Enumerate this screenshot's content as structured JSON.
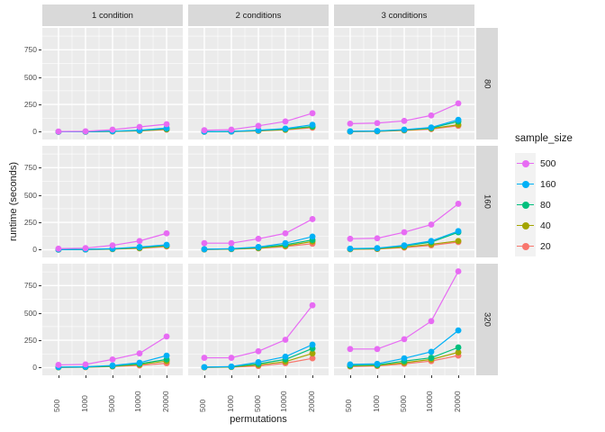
{
  "figure": {
    "x_axis_title": "permutations",
    "y_axis_title": "runtime (seconds)",
    "panel_bg": "#EBEBEB",
    "strip_bg": "#D9D9D9",
    "grid_color": "#FFFFFF"
  },
  "legend": {
    "title": "sample_size",
    "entries": [
      {
        "label": "500",
        "color": "#E76BF3"
      },
      {
        "label": "160",
        "color": "#00B0F6"
      },
      {
        "label": "80",
        "color": "#00BF7D"
      },
      {
        "label": "40",
        "color": "#A3A500"
      },
      {
        "label": "20",
        "color": "#F8766D"
      }
    ]
  },
  "chart_data": {
    "type": "line",
    "title": "",
    "xlabel": "permutations",
    "ylabel": "runtime (seconds)",
    "x_categories": [
      "500",
      "1000",
      "5000",
      "10000",
      "20000"
    ],
    "y_ticks": [
      0,
      250,
      500,
      750
    ],
    "ylim": [
      -70,
      950
    ],
    "facet_columns": [
      "1 condition",
      "2 conditions",
      "3 conditions"
    ],
    "facet_rows": [
      "80",
      "160",
      "320"
    ],
    "legend_title": "sample_size",
    "legend_order": [
      "500",
      "160",
      "80",
      "40",
      "20"
    ],
    "series_draw_order": [
      "20",
      "40",
      "80",
      "160",
      "500"
    ],
    "series_colors": {
      "500": "#E76BF3",
      "160": "#00B0F6",
      "80": "#00BF7D",
      "40": "#A3A500",
      "20": "#F8766D"
    },
    "facets": [
      {
        "row": "80",
        "col": "1 condition",
        "series": {
          "500": [
            3,
            5,
            20,
            45,
            70
          ],
          "160": [
            1,
            2,
            6,
            15,
            35
          ],
          "80": [
            1,
            2,
            5,
            12,
            28
          ],
          "40": [
            1,
            1,
            4,
            10,
            24
          ],
          "20": [
            1,
            1,
            3,
            8,
            20
          ]
        }
      },
      {
        "row": "80",
        "col": "2 conditions",
        "series": {
          "500": [
            15,
            20,
            55,
            95,
            170
          ],
          "160": [
            2,
            4,
            15,
            30,
            65
          ],
          "80": [
            2,
            3,
            12,
            25,
            50
          ],
          "40": [
            1,
            3,
            10,
            20,
            45
          ],
          "20": [
            1,
            2,
            8,
            18,
            38
          ]
        }
      },
      {
        "row": "80",
        "col": "3 conditions",
        "series": {
          "500": [
            75,
            80,
            100,
            150,
            260
          ],
          "160": [
            5,
            8,
            20,
            40,
            110
          ],
          "80": [
            4,
            7,
            18,
            35,
            95
          ],
          "40": [
            3,
            5,
            15,
            30,
            65
          ],
          "20": [
            2,
            4,
            12,
            25,
            55
          ]
        }
      },
      {
        "row": "160",
        "col": "1 condition",
        "series": {
          "500": [
            10,
            15,
            40,
            80,
            150
          ],
          "160": [
            2,
            3,
            10,
            25,
            45
          ],
          "80": [
            2,
            3,
            8,
            20,
            40
          ],
          "40": [
            1,
            2,
            6,
            15,
            35
          ],
          "20": [
            1,
            2,
            5,
            12,
            30
          ]
        }
      },
      {
        "row": "160",
        "col": "2 conditions",
        "series": {
          "500": [
            60,
            60,
            100,
            150,
            280
          ],
          "160": [
            5,
            10,
            25,
            60,
            120
          ],
          "80": [
            4,
            8,
            20,
            45,
            90
          ],
          "40": [
            3,
            6,
            15,
            35,
            75
          ],
          "20": [
            2,
            5,
            12,
            30,
            55
          ]
        }
      },
      {
        "row": "160",
        "col": "3 conditions",
        "series": {
          "500": [
            100,
            105,
            160,
            230,
            420
          ],
          "160": [
            10,
            15,
            40,
            80,
            170
          ],
          "80": [
            8,
            12,
            35,
            70,
            160
          ],
          "40": [
            5,
            8,
            25,
            50,
            80
          ],
          "20": [
            4,
            6,
            20,
            40,
            70
          ]
        }
      },
      {
        "row": "320",
        "col": "1 condition",
        "series": {
          "500": [
            25,
            30,
            75,
            130,
            285
          ],
          "160": [
            5,
            8,
            20,
            45,
            110
          ],
          "80": [
            4,
            6,
            15,
            35,
            75
          ],
          "40": [
            3,
            5,
            12,
            28,
            60
          ],
          "20": [
            2,
            4,
            10,
            20,
            40
          ]
        }
      },
      {
        "row": "320",
        "col": "2 conditions",
        "series": {
          "500": [
            90,
            90,
            150,
            255,
            570
          ],
          "160": [
            5,
            10,
            50,
            100,
            210
          ],
          "80": [
            4,
            8,
            35,
            75,
            175
          ],
          "40": [
            3,
            6,
            25,
            55,
            130
          ],
          "20": [
            2,
            5,
            15,
            40,
            85
          ]
        }
      },
      {
        "row": "320",
        "col": "3 conditions",
        "series": {
          "500": [
            170,
            170,
            260,
            425,
            880
          ],
          "160": [
            30,
            35,
            85,
            145,
            340
          ],
          "80": [
            20,
            25,
            60,
            90,
            185
          ],
          "40": [
            15,
            20,
            45,
            75,
            140
          ],
          "20": [
            10,
            15,
            35,
            60,
            110
          ]
        }
      }
    ]
  }
}
